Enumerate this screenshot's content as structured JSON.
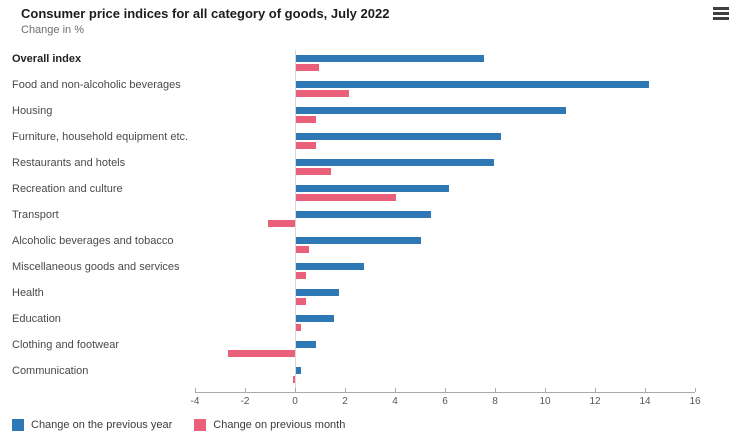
{
  "header": {
    "title": "Consumer price indices for all category of goods, July 2022",
    "subtitle": "Change in %",
    "menu_icon": "hamburger-menu-icon"
  },
  "colors": {
    "previous_year": "#2e79b5",
    "previous_month": "#ea5f79",
    "axis": "#a9a9a9",
    "zero_line": "#d9d9d9"
  },
  "chart_data": {
    "type": "bar",
    "orientation": "horizontal",
    "title": "Consumer price indices for all category of goods, July 2022",
    "subtitle": "Change in %",
    "categories": [
      "Overall index",
      "Food and non-alcoholic beverages",
      "Housing",
      "Furniture, household equipment etc.",
      "Restaurants and hotels",
      "Recreation and culture",
      "Transport",
      "Alcoholic beverages and tobacco",
      "Miscellaneous goods and services",
      "Health",
      "Education",
      "Clothing and footwear",
      "Communication"
    ],
    "series": [
      {
        "name": "Change on the previous year",
        "color": "#2e79b5",
        "values": [
          7.5,
          14.1,
          10.8,
          8.2,
          7.9,
          6.1,
          5.4,
          5.0,
          2.7,
          1.7,
          1.5,
          0.8,
          0.2
        ]
      },
      {
        "name": "Change on previous month",
        "color": "#ea5f79",
        "values": [
          0.9,
          2.1,
          0.8,
          0.8,
          1.4,
          4.0,
          -1.1,
          0.5,
          0.4,
          0.4,
          0.2,
          -2.7,
          -0.1
        ]
      }
    ],
    "xlim": [
      -4,
      16
    ],
    "xticks": [
      -4,
      -2,
      0,
      2,
      4,
      6,
      8,
      10,
      12,
      14,
      16
    ],
    "grid": false,
    "legend_position": "bottom",
    "highlighted_category": "Overall index"
  },
  "legend": {
    "items": [
      {
        "label": "Change on the previous year",
        "color": "#2e79b5"
      },
      {
        "label": "Change on previous month",
        "color": "#ea5f79"
      }
    ]
  }
}
